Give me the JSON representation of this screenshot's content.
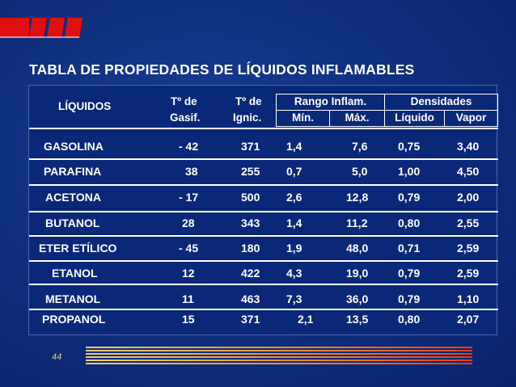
{
  "title": "TABLA DE PROPIEDADES DE LÍQUIDOS INFLAMABLES",
  "headers": {
    "liquidos": "LÍQUIDOS",
    "t_gasif_1": "Tº de",
    "t_gasif_2": "Gasif.",
    "t_ignic_1": "Tº de",
    "t_ignic_2": "Ignic.",
    "rango": "Rango Inflam.",
    "min": "Mín.",
    "max": "Máx.",
    "densidades": "Densidades",
    "liquido": "Líquido",
    "vapor": "Vapor"
  },
  "rows": [
    {
      "name": "GASOLINA",
      "gasif": "- 42",
      "ignic": "371",
      "min": "1,4",
      "max": "7,6",
      "liq": "0,75",
      "vap": "3,40"
    },
    {
      "name": "PARAFINA",
      "gasif": "38",
      "ignic": "255",
      "min": "0,7",
      "max": "5,0",
      "liq": "1,00",
      "vap": "4,50"
    },
    {
      "name": "ACETONA",
      "gasif": "- 17",
      "ignic": "500",
      "min": "2,6",
      "max": "12,8",
      "liq": "0,79",
      "vap": "2,00"
    },
    {
      "name": "BUTANOL",
      "gasif": "28",
      "ignic": "343",
      "min": "1,4",
      "max": "11,2",
      "liq": "0,80",
      "vap": "2,55"
    },
    {
      "name": "ETER ETÍLICO",
      "gasif": "- 45",
      "ignic": "180",
      "min": "1,9",
      "max": "48,0",
      "liq": "0,71",
      "vap": "2,59"
    },
    {
      "name": "ETANOL",
      "gasif": "12",
      "ignic": "422",
      "min": "4,3",
      "max": "19,0",
      "liq": "0,79",
      "vap": "2,59"
    },
    {
      "name": "METANOL",
      "gasif": "11",
      "ignic": "463",
      "min": "7,3",
      "max": "36,0",
      "liq": "0,79",
      "vap": "1,10"
    },
    {
      "name": "PROPANOL",
      "gasif": "15",
      "ignic": "371",
      "min": "2,1",
      "max": "13,5",
      "liq": "0,80",
      "vap": "2,07"
    }
  ],
  "slide_number": "44",
  "colors": {
    "background": "#0b2a73",
    "logo_red": "#e01010",
    "stripe_start": "#f2d06a",
    "stripe_end": "#e0401a"
  }
}
